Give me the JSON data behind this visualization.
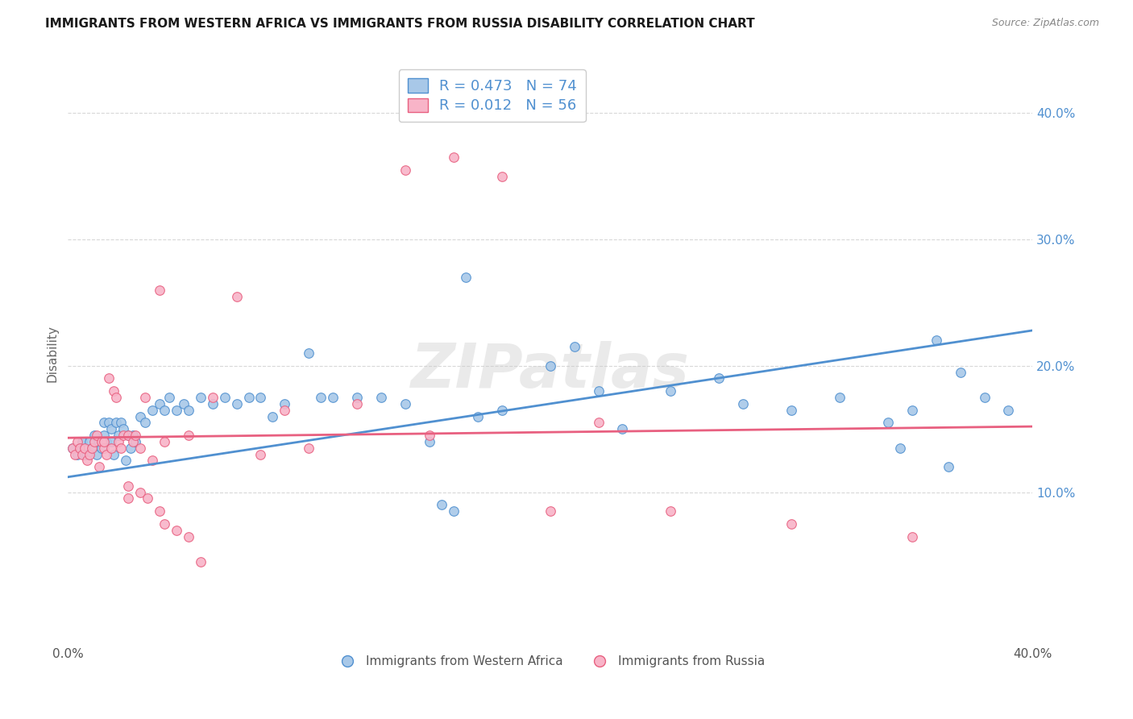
{
  "title": "IMMIGRANTS FROM WESTERN AFRICA VS IMMIGRANTS FROM RUSSIA DISABILITY CORRELATION CHART",
  "source": "Source: ZipAtlas.com",
  "ylabel": "Disability",
  "xlim": [
    0.0,
    0.4
  ],
  "ylim": [
    -0.02,
    0.44
  ],
  "y_ticks": [
    0.1,
    0.2,
    0.3,
    0.4
  ],
  "y_tick_labels": [
    "10.0%",
    "20.0%",
    "30.0%",
    "40.0%"
  ],
  "x_ticks": [
    0.0,
    0.05,
    0.1,
    0.15,
    0.2,
    0.25,
    0.3,
    0.35,
    0.4
  ],
  "blue_color": "#a8c8e8",
  "pink_color": "#f8b4c8",
  "blue_line_color": "#5090d0",
  "pink_line_color": "#e86080",
  "legend_text1": "R = 0.473   N = 74",
  "legend_text2": "R = 0.012   N = 56",
  "legend_label1": "Immigrants from Western Africa",
  "legend_label2": "Immigrants from Russia",
  "watermark": "ZIPatlas",
  "blue_scatter_x": [
    0.002,
    0.004,
    0.005,
    0.006,
    0.007,
    0.008,
    0.009,
    0.01,
    0.011,
    0.012,
    0.013,
    0.014,
    0.015,
    0.015,
    0.016,
    0.017,
    0.018,
    0.018,
    0.019,
    0.02,
    0.021,
    0.022,
    0.023,
    0.024,
    0.025,
    0.026,
    0.027,
    0.028,
    0.03,
    0.032,
    0.035,
    0.038,
    0.04,
    0.042,
    0.045,
    0.048,
    0.05,
    0.055,
    0.06,
    0.065,
    0.07,
    0.075,
    0.08,
    0.085,
    0.09,
    0.1,
    0.105,
    0.11,
    0.12,
    0.13,
    0.14,
    0.15,
    0.17,
    0.18,
    0.2,
    0.21,
    0.22,
    0.23,
    0.25,
    0.27,
    0.28,
    0.3,
    0.32,
    0.34,
    0.35,
    0.36,
    0.37,
    0.38,
    0.39,
    0.365,
    0.345,
    0.155,
    0.16,
    0.165
  ],
  "blue_scatter_y": [
    0.135,
    0.13,
    0.135,
    0.14,
    0.13,
    0.13,
    0.14,
    0.135,
    0.145,
    0.13,
    0.14,
    0.135,
    0.145,
    0.155,
    0.14,
    0.155,
    0.14,
    0.15,
    0.13,
    0.155,
    0.145,
    0.155,
    0.15,
    0.125,
    0.145,
    0.135,
    0.145,
    0.14,
    0.16,
    0.155,
    0.165,
    0.17,
    0.165,
    0.175,
    0.165,
    0.17,
    0.165,
    0.175,
    0.17,
    0.175,
    0.17,
    0.175,
    0.175,
    0.16,
    0.17,
    0.21,
    0.175,
    0.175,
    0.175,
    0.175,
    0.17,
    0.14,
    0.16,
    0.165,
    0.2,
    0.215,
    0.18,
    0.15,
    0.18,
    0.19,
    0.17,
    0.165,
    0.175,
    0.155,
    0.165,
    0.22,
    0.195,
    0.175,
    0.165,
    0.12,
    0.135,
    0.09,
    0.085,
    0.27
  ],
  "pink_scatter_x": [
    0.002,
    0.003,
    0.004,
    0.005,
    0.006,
    0.007,
    0.008,
    0.009,
    0.01,
    0.011,
    0.012,
    0.013,
    0.014,
    0.015,
    0.015,
    0.016,
    0.017,
    0.018,
    0.019,
    0.02,
    0.021,
    0.022,
    0.023,
    0.025,
    0.027,
    0.028,
    0.03,
    0.032,
    0.035,
    0.038,
    0.04,
    0.05,
    0.06,
    0.07,
    0.08,
    0.09,
    0.1,
    0.12,
    0.14,
    0.15,
    0.16,
    0.18,
    0.2,
    0.22,
    0.25,
    0.3,
    0.35,
    0.025,
    0.025,
    0.03,
    0.033,
    0.038,
    0.04,
    0.045,
    0.05,
    0.055
  ],
  "pink_scatter_y": [
    0.135,
    0.13,
    0.14,
    0.135,
    0.13,
    0.135,
    0.125,
    0.13,
    0.135,
    0.14,
    0.145,
    0.12,
    0.14,
    0.135,
    0.14,
    0.13,
    0.19,
    0.135,
    0.18,
    0.175,
    0.14,
    0.135,
    0.145,
    0.145,
    0.14,
    0.145,
    0.135,
    0.175,
    0.125,
    0.26,
    0.14,
    0.145,
    0.175,
    0.255,
    0.13,
    0.165,
    0.135,
    0.17,
    0.355,
    0.145,
    0.365,
    0.35,
    0.085,
    0.155,
    0.085,
    0.075,
    0.065,
    0.095,
    0.105,
    0.1,
    0.095,
    0.085,
    0.075,
    0.07,
    0.065,
    0.045
  ],
  "blue_line_x0": 0.0,
  "blue_line_y0": 0.112,
  "blue_line_x1": 0.4,
  "blue_line_y1": 0.228,
  "pink_line_x0": 0.0,
  "pink_line_y0": 0.143,
  "pink_line_x1": 0.4,
  "pink_line_y1": 0.152,
  "background_color": "#ffffff",
  "grid_color": "#d8d8d8"
}
